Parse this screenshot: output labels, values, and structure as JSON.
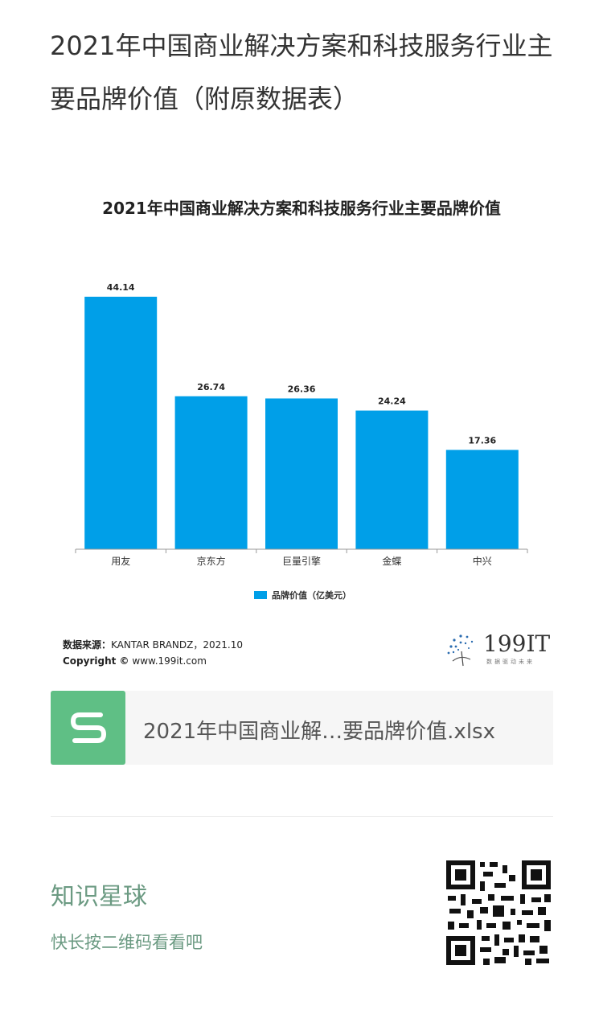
{
  "page": {
    "title": "2021年中国商业解决方案和科技服务行业主要品牌价值（附原数据表）"
  },
  "chart_data": {
    "type": "bar",
    "title": "2021年中国商业解决方案和科技服务行业主要品牌价值",
    "categories": [
      "用友",
      "京东方",
      "巨量引擎",
      "金蝶",
      "中兴"
    ],
    "series": [
      {
        "name": "品牌价值（亿美元）",
        "values": [
          44.14,
          26.74,
          26.36,
          24.24,
          17.36
        ],
        "color": "#009fe8"
      }
    ],
    "data_labels": [
      "44.14",
      "26.74",
      "26.36",
      "24.24",
      "17.36"
    ],
    "ylim": [
      0,
      44.14
    ],
    "grid": false,
    "legend_position": "bottom"
  },
  "source": {
    "label": "数据来源：",
    "value": "KANTAR BRANDZ，2021.10",
    "copyright_label": "Copyright ©",
    "copyright_value": "www.199it.com"
  },
  "logo": {
    "text": "199IT",
    "subtitle": "数据驱动未来"
  },
  "file": {
    "name": "2021年中国商业解…要品牌价值.xlsx",
    "icon": "spreadsheet-s-icon",
    "icon_color": "#5fbf85"
  },
  "footer": {
    "planet_title": "知识星球",
    "planet_hint": "快长按二维码看看吧",
    "qr_icon": "qr-code-icon"
  }
}
